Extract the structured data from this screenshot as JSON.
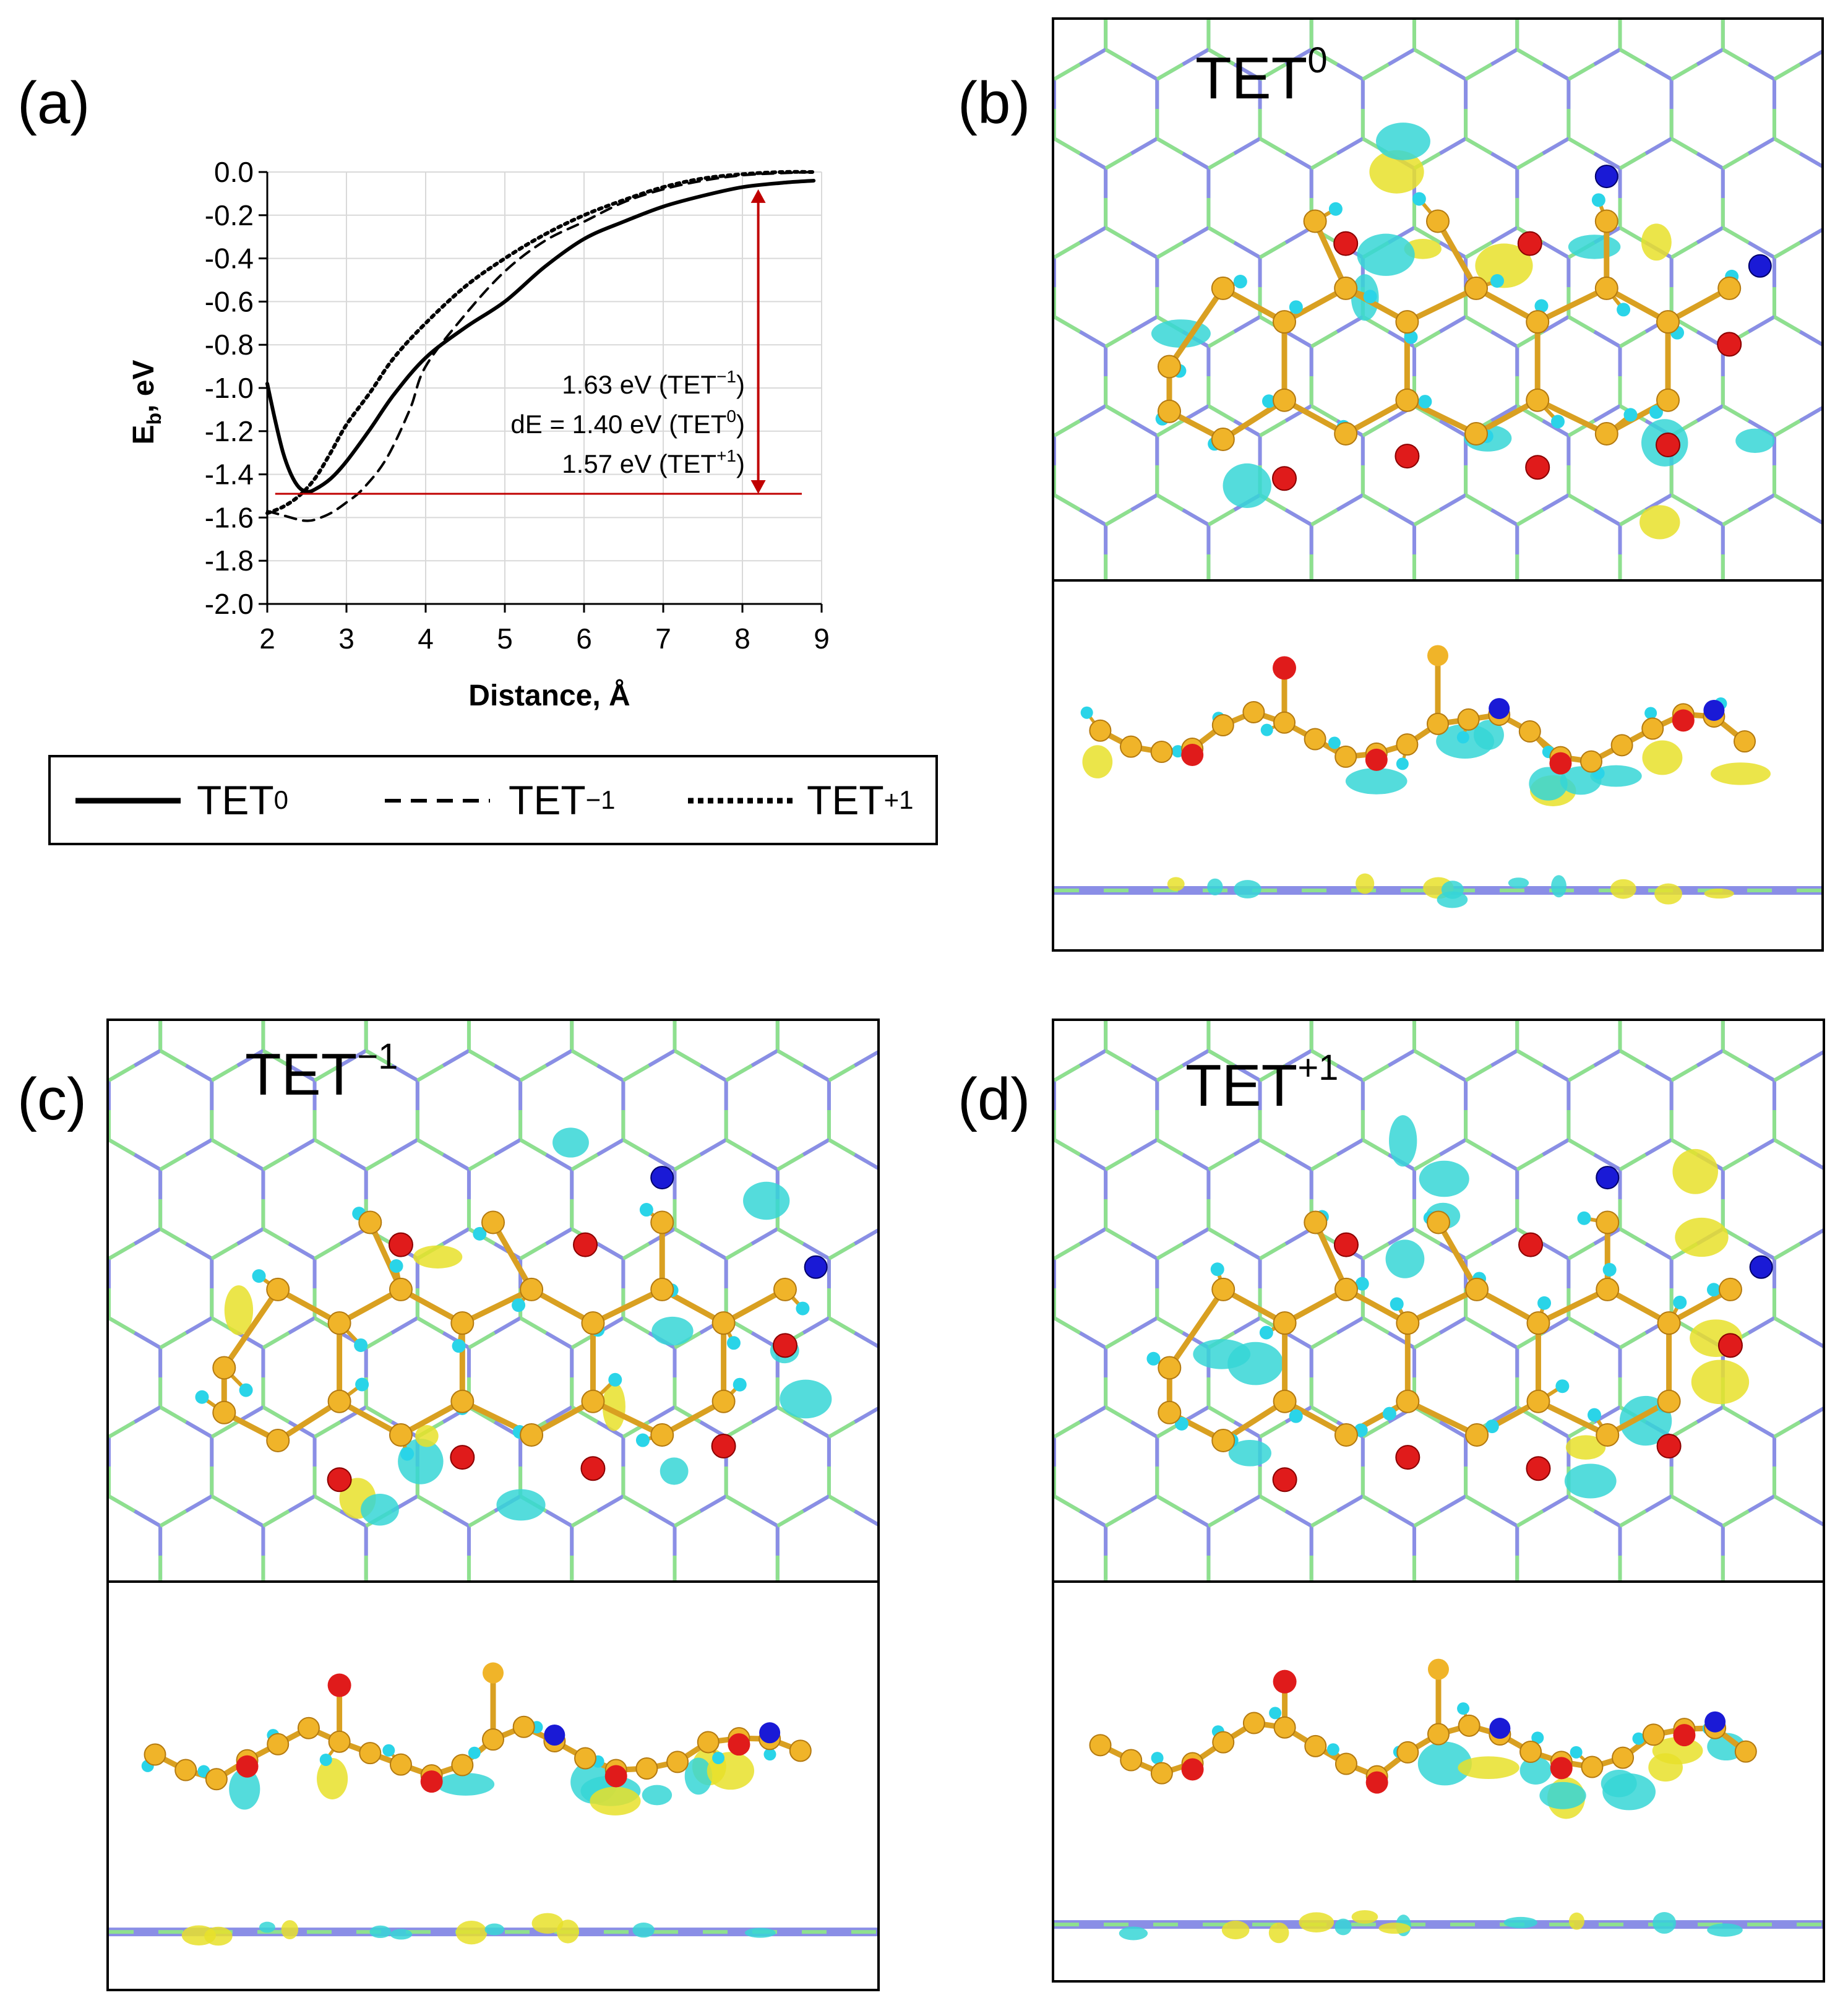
{
  "panels": {
    "a": {
      "label": "(a)"
    },
    "b": {
      "label": "(b)",
      "state": "TET",
      "charge": "0"
    },
    "c": {
      "label": "(c)",
      "state": "TET",
      "charge": "−1"
    },
    "d": {
      "label": "(d)",
      "state": "TET",
      "charge": "+1"
    }
  },
  "annotation": {
    "line1_pre": "1.63 eV (TET",
    "line1_sup": "−1",
    "line1_post": ")",
    "line2_pre": "dE = 1.40 eV  (TET",
    "line2_sup": "0",
    "line2_post": ")",
    "line3_pre": "1.57 eV (TET",
    "line3_sup": "+1",
    "line3_post": ")"
  },
  "legend": {
    "items": [
      {
        "name": "TET",
        "sup": "0",
        "style": "solid"
      },
      {
        "name": "TET",
        "sup": "−1",
        "style": "dashed"
      },
      {
        "name": "TET",
        "sup": "+1",
        "style": "dotted"
      }
    ]
  },
  "colors": {
    "graphene_green": "#8ee08e",
    "graphene_blue": "#8a8ee6",
    "carbon": "#f0b429",
    "oxygen": "#e01b1b",
    "nitrogen": "#1a1ad6",
    "hydrogen": "#2ad4e8",
    "iso_cyan": "#36d6d6",
    "iso_yellow": "#e8e02a",
    "marker_red": "#c00000"
  },
  "chart_data": {
    "type": "line",
    "title": "",
    "xlabel": "Distance, Å",
    "ylabel_main": "E",
    "ylabel_sub": "b",
    "ylabel_tail": ", eV",
    "xlim": [
      2,
      9
    ],
    "ylim": [
      -2.0,
      0.0
    ],
    "xticks": [
      "2",
      "3",
      "4",
      "5",
      "6",
      "7",
      "8",
      "9"
    ],
    "yticks": [
      "0.0",
      "-0.2",
      "-0.4",
      "-0.6",
      "-0.8",
      "-1.0",
      "-1.2",
      "-1.4",
      "-1.6",
      "-1.8",
      "-2.0"
    ],
    "series": [
      {
        "name": "TET0",
        "style": "solid",
        "x": [
          2.0,
          2.1,
          2.2,
          2.3,
          2.4,
          2.5,
          2.6,
          2.8,
          3.0,
          3.3,
          3.6,
          4.0,
          4.5,
          5.0,
          5.5,
          6.0,
          6.5,
          7.0,
          7.5,
          8.0,
          8.5,
          8.9
        ],
        "y": [
          -0.98,
          -1.15,
          -1.3,
          -1.4,
          -1.46,
          -1.48,
          -1.47,
          -1.42,
          -1.34,
          -1.19,
          -1.03,
          -0.86,
          -0.72,
          -0.6,
          -0.44,
          -0.31,
          -0.23,
          -0.16,
          -0.11,
          -0.07,
          -0.05,
          -0.04
        ]
      },
      {
        "name": "TET-1",
        "style": "dashed",
        "x": [
          2.0,
          2.2,
          2.4,
          2.5,
          2.6,
          2.8,
          3.0,
          3.2,
          3.5,
          3.8,
          4.0,
          4.5,
          5.0,
          5.5,
          6.0,
          6.5,
          7.0,
          7.5,
          8.0,
          8.5,
          8.9
        ],
        "y": [
          -1.57,
          -1.59,
          -1.61,
          -1.615,
          -1.61,
          -1.58,
          -1.53,
          -1.47,
          -1.33,
          -1.1,
          -0.9,
          -0.66,
          -0.46,
          -0.32,
          -0.23,
          -0.14,
          -0.08,
          -0.04,
          -0.015,
          -0.005,
          0.0
        ]
      },
      {
        "name": "TET+1",
        "style": "dotted",
        "x": [
          2.0,
          2.2,
          2.4,
          2.6,
          2.8,
          3.0,
          3.3,
          3.6,
          4.0,
          4.5,
          5.0,
          5.5,
          6.0,
          6.5,
          7.0,
          7.5,
          8.0,
          8.5,
          8.9
        ],
        "y": [
          -1.58,
          -1.55,
          -1.5,
          -1.42,
          -1.3,
          -1.17,
          -1.02,
          -0.86,
          -0.7,
          -0.53,
          -0.4,
          -0.29,
          -0.2,
          -0.13,
          -0.07,
          -0.03,
          -0.01,
          0.0,
          0.0
        ]
      }
    ],
    "hline_y": -1.49,
    "arrow_x": 8.2,
    "arrow_y": [
      -0.08,
      -1.49
    ]
  }
}
